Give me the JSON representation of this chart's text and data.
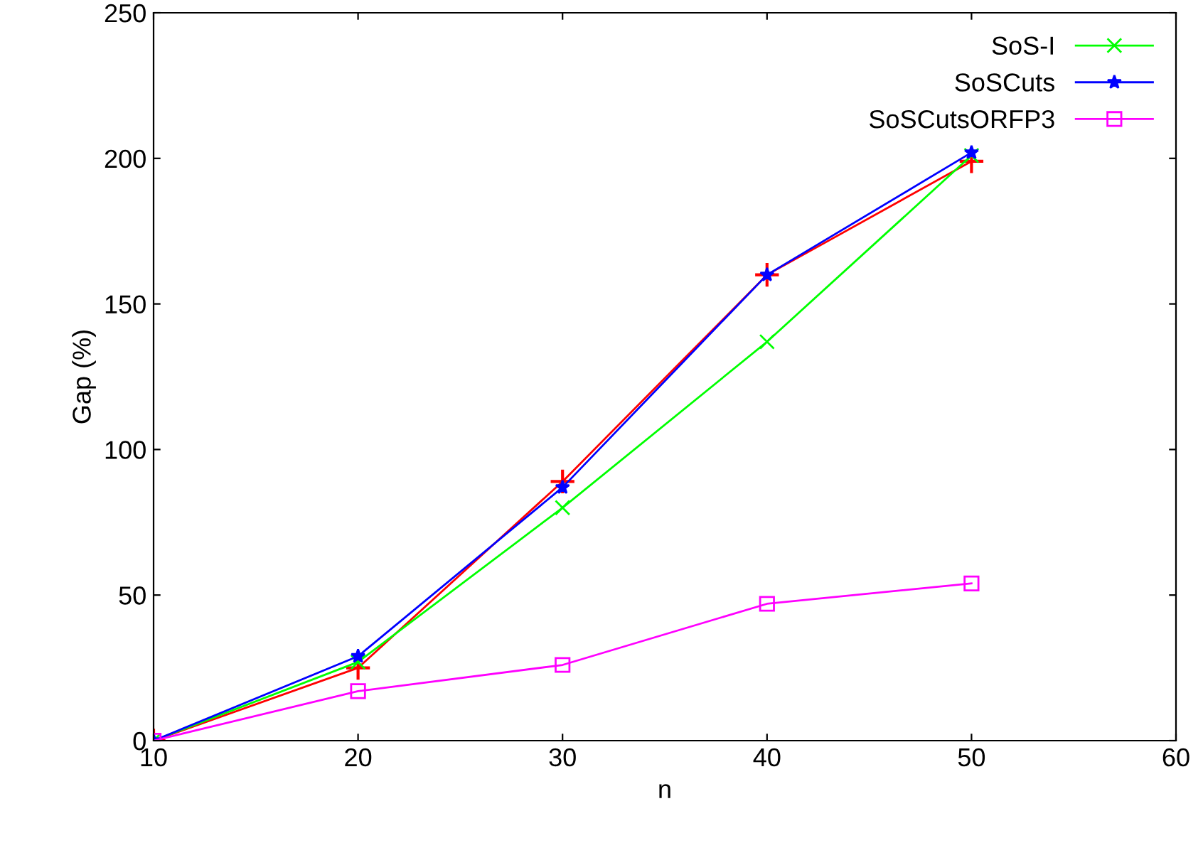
{
  "chart_data": {
    "type": "line",
    "xlabel": "n",
    "ylabel": "Gap (%)",
    "x": [
      10,
      20,
      30,
      40,
      50
    ],
    "series": [
      {
        "color": "#ff0000",
        "marker": "plus",
        "values": [
          0,
          25,
          89,
          160,
          199
        ]
      },
      {
        "name": "SoS-I",
        "color": "#00ff00",
        "marker": "cross",
        "values": [
          0,
          27,
          80,
          137,
          201
        ]
      },
      {
        "name": "SoSCuts",
        "color": "#0000ff",
        "marker": "star",
        "values": [
          0,
          29,
          87,
          160,
          202
        ]
      },
      {
        "name": "SoSCutsORFP3",
        "color": "#ff00ff",
        "marker": "square",
        "values": [
          0,
          17,
          26,
          47,
          54
        ]
      }
    ],
    "xlim": [
      10,
      60
    ],
    "xticks": [
      10,
      20,
      30,
      40,
      50,
      60
    ],
    "ylim": [
      0,
      250
    ],
    "yticks": [
      0,
      50,
      100,
      150,
      200,
      250
    ],
    "grid": false,
    "legend": "top right"
  }
}
